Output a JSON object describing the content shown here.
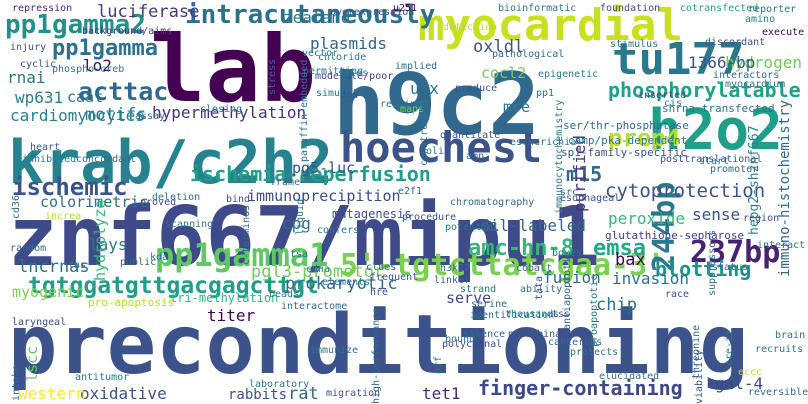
{
  "words": [
    {
      "text": "preconditioning",
      "color": "#3b528b"
    },
    {
      "text": "znf667/mipu1",
      "color": "#3e4a89"
    },
    {
      "text": "h9c2",
      "color": "#31688e"
    },
    {
      "text": "krab/c2h2",
      "color": "#26828e"
    },
    {
      "text": "lab",
      "color": "#440154"
    },
    {
      "text": "myocardial",
      "color": "#c8e020"
    },
    {
      "text": "tu177",
      "color": "#2a788e"
    },
    {
      "text": "h2o2",
      "color": "#1f9e89"
    },
    {
      "text": "hoechest",
      "color": "#3b528b"
    },
    {
      "text": "intracutaneously",
      "color": "#2d708e"
    },
    {
      "text": "pp1gamma2",
      "color": "#21918c"
    },
    {
      "text": "pp1gamma1",
      "color": "#5ec962"
    },
    {
      "text": "5'-tgtcttatcgaa-3'",
      "color": "#7ad151"
    },
    {
      "text": "tgtggatgttgacgagcttgt",
      "color": "#1f9e89"
    },
    {
      "text": "237bp",
      "color": "#482173"
    },
    {
      "text": "ischemic",
      "color": "#3b528b"
    },
    {
      "text": "acttac",
      "color": "#31688e"
    },
    {
      "text": "pp1gamma",
      "color": "#2c728e"
    },
    {
      "text": "phosphorylatable",
      "color": "#1fa188"
    },
    {
      "text": "ischemia-reperfusion",
      "color": "#1f9e89"
    },
    {
      "text": "244bp",
      "color": "#2a788e"
    },
    {
      "text": "prep4",
      "color": "#b5de2b"
    },
    {
      "text": "amc-hn-8",
      "color": "#35b779"
    },
    {
      "text": "emsa",
      "color": "#22a884"
    },
    {
      "text": "finger-containing",
      "color": "#3e4989"
    },
    {
      "text": "m15",
      "color": "#31688e"
    },
    {
      "text": "cytoprotection",
      "color": "#3b528b"
    },
    {
      "text": "luciferase",
      "color": "#443983"
    },
    {
      "text": "immunoprecipition",
      "color": "#3e4a89"
    },
    {
      "text": "hypermethylation",
      "color": "#46327e"
    },
    {
      "text": "lncrnas",
      "color": "#2c728e"
    },
    {
      "text": "myogenic",
      "color": "#7ad151"
    },
    {
      "text": "blotting",
      "color": "#21918c"
    },
    {
      "text": "prokaryotic",
      "color": "#31688e"
    },
    {
      "text": "oxidative",
      "color": "#3b528b"
    },
    {
      "text": "rat",
      "color": "#31688e"
    },
    {
      "text": "tet1",
      "color": "#482878"
    },
    {
      "text": "gal-4",
      "color": "#3e4a89"
    },
    {
      "text": "western",
      "color": "#fde725"
    },
    {
      "text": "colorimetric",
      "color": "#2d708e"
    },
    {
      "text": "hydrogen",
      "color": "#6ece58"
    },
    {
      "text": "plasmids",
      "color": "#31688e"
    },
    {
      "text": "zealand",
      "color": "#2a788e"
    },
    {
      "text": "lo2",
      "color": "#471063"
    },
    {
      "text": "motifs",
      "color": "#2a788e"
    },
    {
      "text": "cardiomyocytes",
      "color": "#26828e"
    },
    {
      "text": "oxldl",
      "color": "#3b528b"
    },
    {
      "text": "utx",
      "color": "#2c728e"
    },
    {
      "text": "peroxide",
      "color": "#35b779"
    },
    {
      "text": "dil-labeled",
      "color": "#31688e"
    },
    {
      "text": "sense",
      "color": "#3b528b"
    },
    {
      "text": "bax",
      "color": "#440154"
    },
    {
      "text": "fusion",
      "color": "#31688e"
    },
    {
      "text": "chip",
      "color": "#2d708e"
    },
    {
      "text": "invasion",
      "color": "#2c728e"
    },
    {
      "text": "pgl3-promotor",
      "color": "#6ece58"
    },
    {
      "text": "purified",
      "color": "#46327e"
    },
    {
      "text": "mre",
      "color": "#2a788e"
    },
    {
      "text": "cocl2",
      "color": "#6ece58"
    },
    {
      "text": "1366-bp",
      "color": "#3b528b"
    },
    {
      "text": "rnai",
      "color": "#2a788e"
    },
    {
      "text": "wp631",
      "color": "#26828e"
    },
    {
      "text": "caat",
      "color": "#2d708e"
    },
    {
      "text": "pg5-luc",
      "color": "#3b528b"
    },
    {
      "text": "cpg",
      "color": "#2c728e"
    },
    {
      "text": "lays",
      "color": "#2a788e"
    },
    {
      "text": "hydrolyze",
      "color": "#35b779"
    },
    {
      "text": "serve",
      "color": "#3e4a89"
    },
    {
      "text": "lscc",
      "color": "#5ec962"
    },
    {
      "text": "titer",
      "color": "#440154"
    },
    {
      "text": "rabbits",
      "color": "#3b528b"
    },
    {
      "text": "immuno-histochemistry",
      "color": "#31688e"
    },
    {
      "text": "hepg2-shznf667",
      "color": "#26828e"
    },
    {
      "text": "shrna-transfected",
      "color": "#2c728e"
    },
    {
      "text": "mutagenesis",
      "color": "#3b528b"
    },
    {
      "text": "tri-methylation",
      "color": "#35b779"
    },
    {
      "text": "pro-apoptosis",
      "color": "#b5de2b"
    },
    {
      "text": "glutathione-sepharose",
      "color": "#443983"
    },
    {
      "text": "camp/pka-dependent",
      "color": "#2a788e"
    },
    {
      "text": "ser/thr-phosphatase",
      "color": "#31688e"
    },
    {
      "text": "sp1-family-specific",
      "color": "#3b528b"
    },
    {
      "text": "immunocytochemistry",
      "color": "#2a788e"
    },
    {
      "text": "paraffin-embedded",
      "color": "#2c728e"
    },
    {
      "text": "bioinformatic",
      "color": "#2a788e"
    },
    {
      "text": "foundation",
      "color": "#3e4a89"
    },
    {
      "text": "cotransfected",
      "color": "#1fa188"
    },
    {
      "text": "reporter",
      "color": "#2c728e"
    },
    {
      "text": "amino",
      "color": "#2a788e"
    },
    {
      "text": "execute",
      "color": "#440154"
    },
    {
      "text": "repression",
      "color": "#482878"
    },
    {
      "text": "background/aims",
      "color": "#46327e"
    },
    {
      "text": "overexpression",
      "color": "#3b528b"
    },
    {
      "text": "u251",
      "color": "#440154"
    },
    {
      "text": "injury",
      "color": "#3b528b"
    },
    {
      "text": "vector",
      "color": "#2a788e"
    },
    {
      "text": "stress",
      "color": "#31688e"
    },
    {
      "text": "chloride",
      "color": "#2a788e"
    },
    {
      "text": "moderate/poor",
      "color": "#3e4a89"
    },
    {
      "text": "simulate",
      "color": "#2c728e"
    },
    {
      "text": "doa",
      "color": "#3b528b"
    },
    {
      "text": "reading",
      "color": "#2a788e"
    },
    {
      "text": "maps",
      "color": "#6ece58"
    },
    {
      "text": "closing",
      "color": "#2c728e"
    },
    {
      "text": "assay",
      "color": "#31688e"
    },
    {
      "text": "heart",
      "color": "#3b528b"
    },
    {
      "text": "inhibited",
      "color": "#2a788e"
    },
    {
      "text": "concordant",
      "color": "#31688e"
    },
    {
      "text": "cd36",
      "color": "#2d708e"
    },
    {
      "text": "random",
      "color": "#2c728e"
    },
    {
      "text": "proved",
      "color": "#3b528b"
    },
    {
      "text": "public",
      "color": "#31688e"
    },
    {
      "text": "kda",
      "color": "#2a788e"
    },
    {
      "text": "laryngeal",
      "color": "#3e4a89"
    },
    {
      "text": "fas",
      "color": "#2c728e"
    },
    {
      "text": "sites",
      "color": "#2a788e"
    },
    {
      "text": "pathological",
      "color": "#31688e"
    },
    {
      "text": "epigenetic",
      "color": "#2a788e"
    },
    {
      "text": "detection",
      "color": "#b5de2b"
    },
    {
      "text": "stimulus",
      "color": "#2c728e"
    },
    {
      "text": "discordant",
      "color": "#3b528b"
    },
    {
      "text": "interactors",
      "color": "#31688e"
    },
    {
      "text": "myocardium",
      "color": "#2a788e"
    },
    {
      "text": "inserted",
      "color": "#3e4a89"
    },
    {
      "text": "cis",
      "color": "#2c728e"
    },
    {
      "text": "start",
      "color": "#2a788e"
    },
    {
      "text": "promoter",
      "color": "#31688e"
    },
    {
      "text": "region",
      "color": "#3b528b"
    },
    {
      "text": "status",
      "color": "#2c728e"
    },
    {
      "text": "interact",
      "color": "#2a788e"
    },
    {
      "text": "suppressors",
      "color": "#31688e"
    },
    {
      "text": "race",
      "color": "#3b528b"
    },
    {
      "text": "brain",
      "color": "#2c728e"
    },
    {
      "text": "recruits",
      "color": "#2a788e"
    },
    {
      "text": "viability",
      "color": "#3b528b"
    },
    {
      "text": "threonine",
      "color": "#31688e"
    },
    {
      "text": "cre-ii",
      "color": "#2a788e"
    },
    {
      "text": "eccc",
      "color": "#b5de2b"
    },
    {
      "text": "reversible",
      "color": "#2c728e"
    },
    {
      "text": "elucidated",
      "color": "#2a788e"
    },
    {
      "text": "polyclonal",
      "color": "#3e4a89"
    },
    {
      "text": "silence",
      "color": "#31688e"
    },
    {
      "text": "identification",
      "color": "#2c728e"
    },
    {
      "text": "thousands",
      "color": "#2a788e"
    },
    {
      "text": "tss",
      "color": "#3b528b"
    },
    {
      "text": "serine",
      "color": "#31688e"
    },
    {
      "text": "bound",
      "color": "#2c728e"
    },
    {
      "text": "orf",
      "color": "#2a788e"
    },
    {
      "text": "high-performance",
      "color": "#31688e"
    },
    {
      "text": "migration",
      "color": "#3b528b"
    },
    {
      "text": "laboratory",
      "color": "#2c728e"
    },
    {
      "text": "immunize",
      "color": "#2a788e"
    },
    {
      "text": "interactome",
      "color": "#31688e"
    },
    {
      "text": "beads",
      "color": "#2a788e"
    },
    {
      "text": "hre",
      "color": "#3b528b"
    },
    {
      "text": "h3k27",
      "color": "#2c728e"
    },
    {
      "text": "linker",
      "color": "#31688e"
    },
    {
      "text": "strand",
      "color": "#2a788e"
    },
    {
      "text": "frequent",
      "color": "#3b528b"
    },
    {
      "text": "elements",
      "color": "#2c728e"
    },
    {
      "text": "clues",
      "color": "#31688e"
    },
    {
      "text": "cdna",
      "color": "#2a788e"
    },
    {
      "text": "procedure",
      "color": "#3b528b"
    },
    {
      "text": "potential",
      "color": "#2c728e"
    },
    {
      "text": "cobalt",
      "color": "#31688e"
    },
    {
      "text": "boxes",
      "color": "#2a788e"
    },
    {
      "text": "tata",
      "color": "#3b528b"
    },
    {
      "text": "ability",
      "color": "#2c728e"
    },
    {
      "text": "antiapoptotic",
      "color": "#31688e"
    },
    {
      "text": "proapoptotic",
      "color": "#2a788e"
    },
    {
      "text": "esophageal",
      "color": "#3b528b"
    },
    {
      "text": "chromatography",
      "color": "#31688e"
    },
    {
      "text": "tsa",
      "color": "#2c728e"
    },
    {
      "text": "confers",
      "color": "#2a788e"
    },
    {
      "text": "bind",
      "color": "#3b528b"
    },
    {
      "text": "amp",
      "color": "#31688e"
    },
    {
      "text": "escherichia",
      "color": "#2c728e"
    },
    {
      "text": "coli",
      "color": "#2a788e"
    },
    {
      "text": "quantitate",
      "color": "#3b528b"
    },
    {
      "text": "e2f1",
      "color": "#31688e"
    },
    {
      "text": "pp1",
      "color": "#2c728e"
    },
    {
      "text": "constructed",
      "color": "#2a788e"
    },
    {
      "text": "produce",
      "color": "#3b528b"
    },
    {
      "text": "implied",
      "color": "#31688e"
    },
    {
      "text": "permitting",
      "color": "#2c728e"
    },
    {
      "text": "phospho-creb",
      "color": "#2a788e"
    },
    {
      "text": "cyclic",
      "color": "#3b528b"
    },
    {
      "text": "frame",
      "color": "#31688e"
    },
    {
      "text": "increa",
      "color": "#b5de2b"
    },
    {
      "text": "deletion",
      "color": "#2c728e"
    },
    {
      "text": "scanning",
      "color": "#2a788e"
    },
    {
      "text": "c-terminus",
      "color": "#31688e"
    },
    {
      "text": "liquid",
      "color": "#2a788e"
    },
    {
      "text": "posttranslational",
      "color": "#3b528b"
    },
    {
      "text": "src",
      "color": "#2c728e"
    },
    {
      "text": "intake",
      "color": "#31688e"
    },
    {
      "text": "antitumor",
      "color": "#2a788e"
    },
    {
      "text": "recombinant",
      "color": "#3b528b"
    },
    {
      "text": "protects",
      "color": "#2c728e"
    },
    {
      "text": "cancerous",
      "color": "#31688e"
    }
  ]
}
